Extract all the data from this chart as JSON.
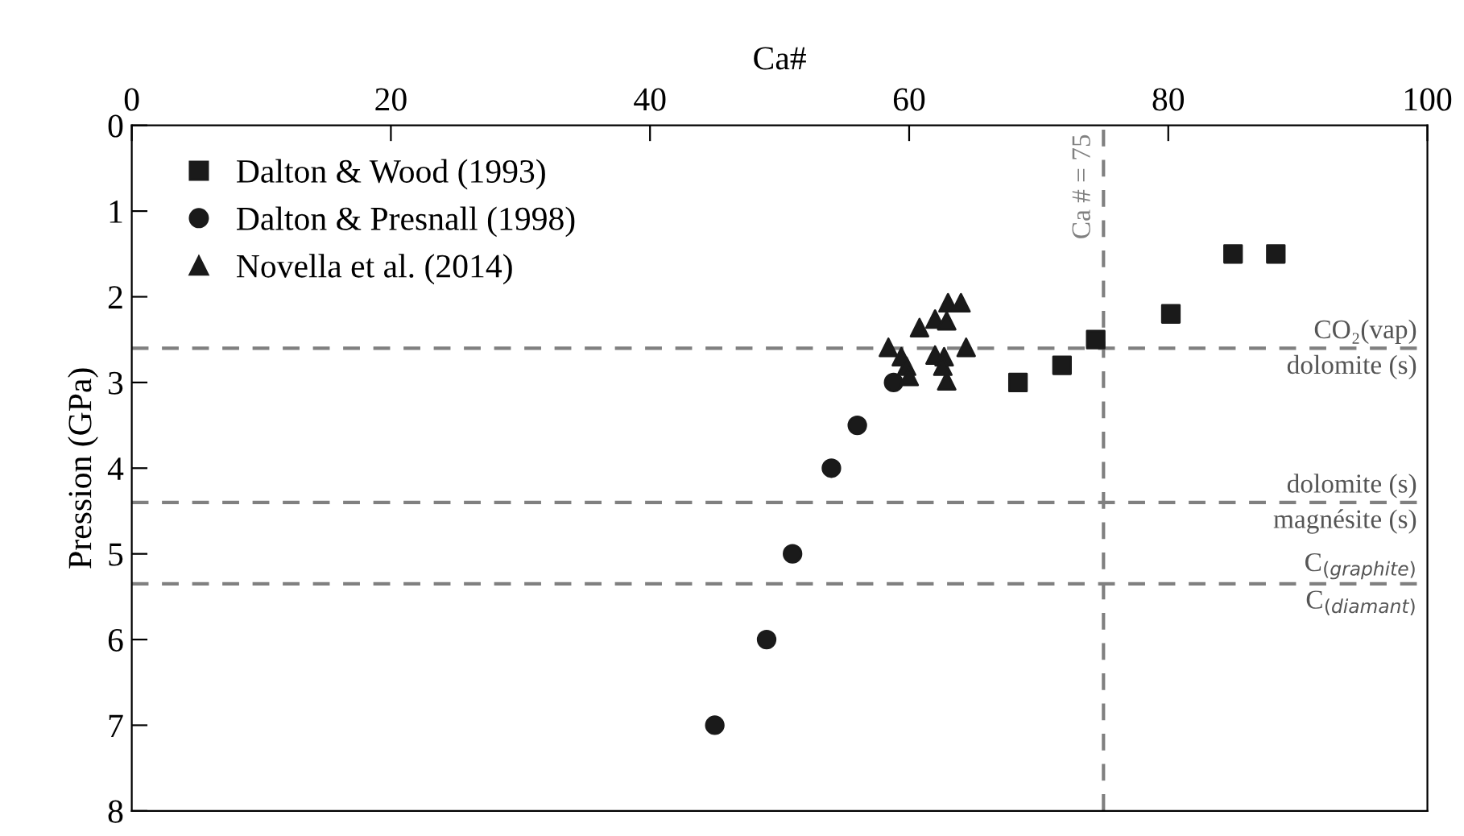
{
  "chart_data": {
    "type": "scatter",
    "xlabel": "Ca#",
    "ylabel": "Pression (GPa)",
    "xlim": [
      0,
      100
    ],
    "xticks": [
      0,
      20,
      40,
      60,
      80,
      100
    ],
    "ylim": [
      8,
      0
    ],
    "yticks": [
      0,
      1,
      2,
      3,
      4,
      5,
      6,
      7,
      8
    ],
    "legend": "top left",
    "grid": false,
    "series": [
      {
        "name": "Dalton & Wood (1993)",
        "color": "#1a1a1a",
        "marker": "square",
        "x": [
          85,
          88.3,
          80.2,
          74.4,
          71.8,
          68.4
        ],
        "values": [
          1.5,
          1.5,
          2.2,
          2.5,
          2.8,
          3.0
        ]
      },
      {
        "name": "Dalton & Presnall (1998)",
        "color": "#1a1a1a",
        "marker": "circle",
        "x": [
          58.8,
          56,
          54,
          51,
          49,
          45
        ],
        "values": [
          3.0,
          3.5,
          4.0,
          5.0,
          6.0,
          7.0
        ]
      },
      {
        "name": "Novella et al. (2014)",
        "color": "#1a1a1a",
        "marker": "triangle",
        "x": [
          63.0,
          64.0,
          62.0,
          62.9,
          60.8,
          58.4,
          64.4,
          59.4,
          62.0,
          62.7,
          59.8,
          62.6,
          60.0,
          62.9
        ],
        "values": [
          2.07,
          2.07,
          2.26,
          2.28,
          2.36,
          2.59,
          2.59,
          2.7,
          2.68,
          2.7,
          2.81,
          2.81,
          2.93,
          2.98
        ]
      }
    ],
    "ref_lines": [
      {
        "axis": "x",
        "value": 75,
        "label": "Ca # = 75",
        "color": "#808080",
        "line_style": "dashed"
      },
      {
        "axis": "y",
        "value": 2.6,
        "label": "CO₂(vap)",
        "color": "#808080",
        "line_style": "dashed"
      },
      {
        "axis": "y",
        "value": 4.4,
        "label": "dolomite (s)",
        "color": "#808080",
        "line_style": "dashed"
      },
      {
        "axis": "y",
        "value": 5.35,
        "label": "C$_{(graphite)}$",
        "color": "#808080",
        "line_style": "dashed"
      }
    ],
    "annotations": [
      {
        "text": "dolomite (s)",
        "y": 2.6
      },
      {
        "text": "magnésite (s)",
        "y": 4.4
      },
      {
        "text": "C$_{(diamant)}$",
        "y": 5.35
      }
    ]
  }
}
